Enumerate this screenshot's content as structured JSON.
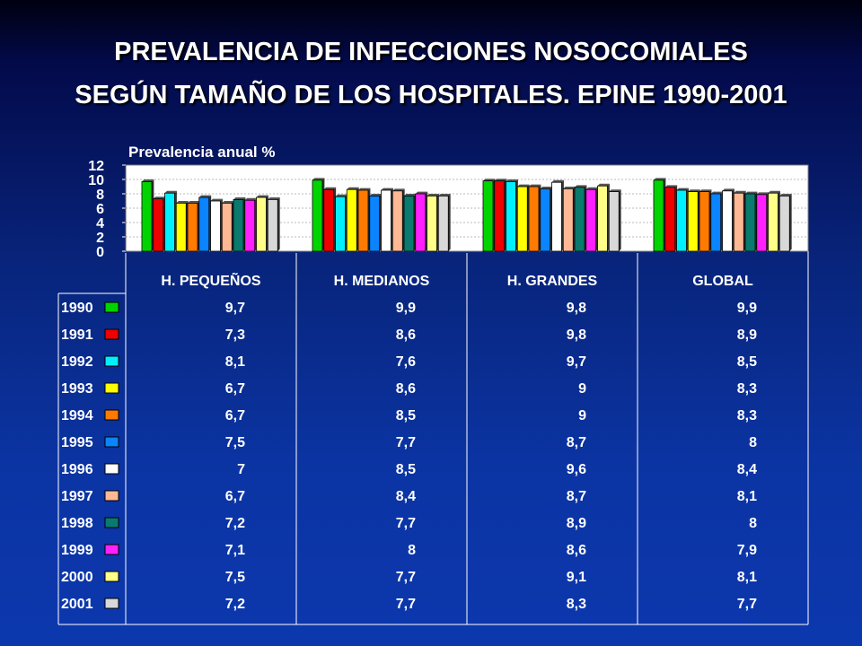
{
  "title": {
    "line1": "PREVALENCIA DE INFECCIONES NOSOCOMIALES",
    "line2": "SEGÚN TAMAÑO DE LOS HOSPITALES. EPINE 1990-2001"
  },
  "chart_data": {
    "type": "bar",
    "title": "Prevalencia anual %",
    "categories": [
      "H. PEQUEÑOS",
      "H. MEDIANOS",
      "H. GRANDES",
      "GLOBAL"
    ],
    "ylim": [
      0,
      12
    ],
    "yticks": [
      "0",
      "2",
      "4",
      "6",
      "8",
      "10",
      "12"
    ],
    "grid": true,
    "legend": "data-table-left",
    "series": [
      {
        "name": "1990",
        "color": "#00d400",
        "values": [
          9.7,
          9.9,
          9.8,
          9.9
        ],
        "labels": [
          "9,7",
          "9,9",
          "9,8",
          "9,9"
        ]
      },
      {
        "name": "1991",
        "color": "#ee0000",
        "values": [
          7.3,
          8.6,
          9.8,
          8.9
        ],
        "labels": [
          "7,3",
          "8,6",
          "9,8",
          "8,9"
        ]
      },
      {
        "name": "1992",
        "color": "#00f0ff",
        "values": [
          8.1,
          7.6,
          9.7,
          8.5
        ],
        "labels": [
          "8,1",
          "7,6",
          "9,7",
          "8,5"
        ]
      },
      {
        "name": "1993",
        "color": "#ffff00",
        "values": [
          6.7,
          8.6,
          9,
          8.3
        ],
        "labels": [
          "6,7",
          "8,6",
          "9",
          "8,3"
        ]
      },
      {
        "name": "1994",
        "color": "#ff7a00",
        "values": [
          6.7,
          8.5,
          9,
          8.3
        ],
        "labels": [
          "6,7",
          "8,5",
          "9",
          "8,3"
        ]
      },
      {
        "name": "1995",
        "color": "#0a84ff",
        "values": [
          7.5,
          7.7,
          8.7,
          8
        ],
        "labels": [
          "7,5",
          "7,7",
          "8,7",
          "8"
        ]
      },
      {
        "name": "1996",
        "color": "#ffffff",
        "values": [
          7,
          8.5,
          9.6,
          8.4
        ],
        "labels": [
          "7",
          "8,5",
          "9,6",
          "8,4"
        ]
      },
      {
        "name": "1997",
        "color": "#ffb894",
        "values": [
          6.7,
          8.4,
          8.7,
          8.1
        ],
        "labels": [
          "6,7",
          "8,4",
          "8,7",
          "8,1"
        ]
      },
      {
        "name": "1998",
        "color": "#0a7a6e",
        "values": [
          7.2,
          7.7,
          8.9,
          8
        ],
        "labels": [
          "7,2",
          "7,7",
          "8,9",
          "8"
        ]
      },
      {
        "name": "1999",
        "color": "#ff20ff",
        "values": [
          7.1,
          8,
          8.6,
          7.9
        ],
        "labels": [
          "7,1",
          "8",
          "8,6",
          "7,9"
        ]
      },
      {
        "name": "2000",
        "color": "#ffff88",
        "values": [
          7.5,
          7.7,
          9.1,
          8.1
        ],
        "labels": [
          "7,5",
          "7,7",
          "9,1",
          "8,1"
        ]
      },
      {
        "name": "2001",
        "color": "#d8d8d8",
        "values": [
          7.2,
          7.7,
          8.3,
          7.7
        ],
        "labels": [
          "7,2",
          "7,7",
          "8,3",
          "7,7"
        ]
      }
    ]
  }
}
